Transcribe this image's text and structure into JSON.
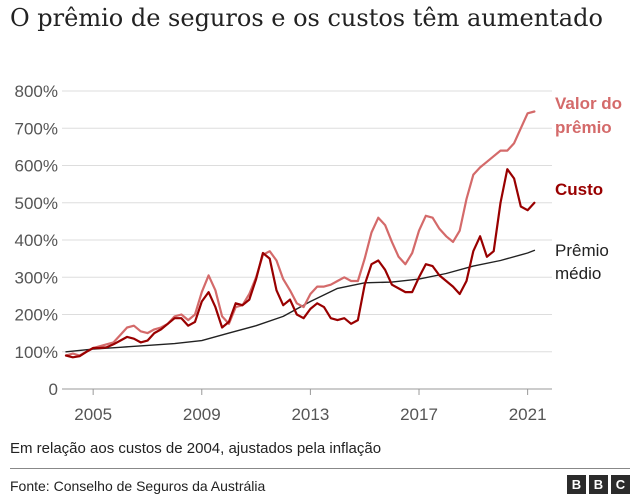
{
  "chart_data": {
    "type": "line",
    "title": "O prêmio de seguros e os custos têm aumentado",
    "subtitle": "Em relação aos custos de 2004, ajustados pela inflação",
    "source": "Fonte: Conselho de Seguros da Austrália",
    "logo": [
      "B",
      "B",
      "C"
    ],
    "ylim": [
      0,
      800
    ],
    "y_ticks": [
      0,
      100,
      200,
      300,
      400,
      500,
      600,
      700,
      800
    ],
    "y_tick_labels": [
      "0",
      "100%",
      "200%",
      "300%",
      "400%",
      "500%",
      "600%",
      "700%",
      "800%"
    ],
    "xlim": [
      2004,
      2021.75
    ],
    "x_ticks": [
      2005,
      2009,
      2013,
      2017,
      2021
    ],
    "x_tick_labels": [
      "2005",
      "2009",
      "2013",
      "2017",
      "2021"
    ],
    "grid": true,
    "series": [
      {
        "name": "Valor do prêmio",
        "label_lines": [
          "Valor do",
          "prêmio"
        ],
        "color": "#d46a6a",
        "bold_label": true,
        "x": [
          2004,
          2004.25,
          2004.5,
          2004.75,
          2005,
          2005.25,
          2005.5,
          2005.75,
          2006,
          2006.25,
          2006.5,
          2006.75,
          2007,
          2007.25,
          2007.5,
          2007.75,
          2008,
          2008.25,
          2008.5,
          2008.75,
          2009,
          2009.25,
          2009.5,
          2009.75,
          2010,
          2010.25,
          2010.5,
          2010.75,
          2011,
          2011.25,
          2011.5,
          2011.75,
          2012,
          2012.25,
          2012.5,
          2012.75,
          2013,
          2013.25,
          2013.5,
          2013.75,
          2014,
          2014.25,
          2014.5,
          2014.75,
          2015,
          2015.25,
          2015.5,
          2015.75,
          2016,
          2016.25,
          2016.5,
          2016.75,
          2017,
          2017.25,
          2017.5,
          2017.75,
          2018,
          2018.25,
          2018.5,
          2018.75,
          2019,
          2019.25,
          2019.5,
          2019.75,
          2020,
          2020.25,
          2020.5,
          2020.75,
          2021,
          2021.25
        ],
        "values": [
          90,
          95,
          90,
          100,
          110,
          115,
          120,
          125,
          145,
          165,
          170,
          155,
          150,
          160,
          165,
          175,
          195,
          200,
          185,
          200,
          260,
          305,
          265,
          195,
          175,
          220,
          225,
          255,
          300,
          360,
          370,
          345,
          295,
          265,
          230,
          220,
          255,
          275,
          275,
          280,
          290,
          300,
          290,
          290,
          350,
          420,
          460,
          440,
          395,
          355,
          335,
          365,
          425,
          465,
          460,
          430,
          410,
          395,
          425,
          510,
          575,
          595,
          610,
          625,
          640,
          640,
          660,
          700,
          740,
          745
        ]
      },
      {
        "name": "Custo",
        "label_lines": [
          "Custo"
        ],
        "color": "#990000",
        "bold_label": true,
        "x": [
          2004,
          2004.25,
          2004.5,
          2004.75,
          2005,
          2005.25,
          2005.5,
          2005.75,
          2006,
          2006.25,
          2006.5,
          2006.75,
          2007,
          2007.25,
          2007.5,
          2007.75,
          2008,
          2008.25,
          2008.5,
          2008.75,
          2009,
          2009.25,
          2009.5,
          2009.75,
          2010,
          2010.25,
          2010.5,
          2010.75,
          2011,
          2011.25,
          2011.5,
          2011.75,
          2012,
          2012.25,
          2012.5,
          2012.75,
          2013,
          2013.25,
          2013.5,
          2013.75,
          2014,
          2014.25,
          2014.5,
          2014.75,
          2015,
          2015.25,
          2015.5,
          2015.75,
          2016,
          2016.25,
          2016.5,
          2016.75,
          2017,
          2017.25,
          2017.5,
          2017.75,
          2018,
          2018.25,
          2018.5,
          2018.75,
          2019,
          2019.25,
          2019.5,
          2019.75,
          2020,
          2020.25,
          2020.5,
          2020.75,
          2021,
          2021.25
        ],
        "values": [
          90,
          85,
          88,
          100,
          110,
          110,
          112,
          120,
          130,
          140,
          135,
          125,
          130,
          150,
          160,
          175,
          190,
          190,
          170,
          180,
          235,
          260,
          220,
          165,
          180,
          230,
          225,
          240,
          295,
          365,
          350,
          265,
          225,
          240,
          200,
          190,
          215,
          230,
          220,
          190,
          185,
          190,
          175,
          185,
          280,
          335,
          345,
          320,
          280,
          270,
          260,
          260,
          300,
          335,
          330,
          305,
          290,
          275,
          255,
          290,
          370,
          410,
          355,
          370,
          500,
          590,
          565,
          490,
          480,
          500
        ]
      },
      {
        "name": "Prêmio médio",
        "label_lines": [
          "Prêmio",
          "médio"
        ],
        "color": "#222222",
        "bold_label": false,
        "x": [
          2004,
          2005,
          2006,
          2007,
          2008,
          2009,
          2010,
          2011,
          2012,
          2013,
          2014,
          2015,
          2016,
          2017,
          2018,
          2019,
          2020,
          2021,
          2021.25
        ],
        "values": [
          100,
          107,
          112,
          117,
          122,
          130,
          150,
          170,
          195,
          235,
          270,
          285,
          287,
          295,
          310,
          330,
          345,
          365,
          372
        ]
      }
    ]
  }
}
